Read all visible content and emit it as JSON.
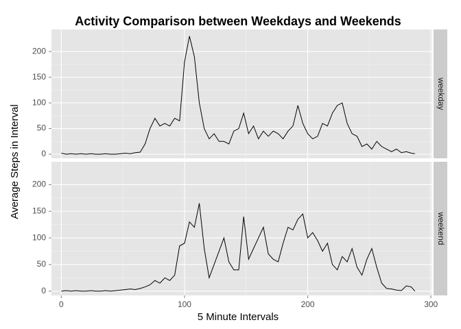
{
  "chart_data": {
    "type": "line",
    "title": "Activity Comparison between Weekdays and Weekends",
    "xlabel": "5 Minute Intervals",
    "ylabel": "Average Steps in Interval",
    "x": [
      0,
      4,
      8,
      12,
      16,
      20,
      24,
      28,
      32,
      36,
      40,
      44,
      48,
      52,
      56,
      60,
      64,
      68,
      72,
      76,
      80,
      84,
      88,
      92,
      96,
      100,
      104,
      108,
      112,
      116,
      120,
      124,
      128,
      132,
      136,
      140,
      144,
      148,
      152,
      156,
      160,
      164,
      168,
      172,
      176,
      180,
      184,
      188,
      192,
      196,
      200,
      204,
      208,
      212,
      216,
      220,
      224,
      228,
      232,
      236,
      240,
      244,
      248,
      252,
      256,
      260,
      264,
      268,
      272,
      276,
      280,
      284,
      287
    ],
    "series": [
      {
        "name": "weekday",
        "color": "#000000",
        "values": [
          2,
          0,
          1,
          0,
          1,
          0,
          1,
          0,
          0,
          1,
          0,
          0,
          1,
          2,
          1,
          3,
          4,
          20,
          50,
          70,
          55,
          60,
          55,
          70,
          65,
          180,
          230,
          190,
          100,
          50,
          30,
          40,
          25,
          25,
          20,
          45,
          50,
          80,
          40,
          55,
          30,
          45,
          35,
          45,
          40,
          30,
          45,
          55,
          95,
          60,
          40,
          30,
          35,
          60,
          55,
          80,
          95,
          100,
          60,
          40,
          35,
          15,
          20,
          10,
          25,
          15,
          10,
          5,
          10,
          3,
          5,
          2,
          1
        ]
      },
      {
        "name": "weekend",
        "color": "#000000",
        "values": [
          0,
          1,
          0,
          1,
          0,
          0,
          1,
          0,
          0,
          1,
          0,
          1,
          2,
          3,
          4,
          3,
          5,
          8,
          12,
          20,
          15,
          25,
          20,
          30,
          85,
          90,
          130,
          120,
          165,
          80,
          25,
          50,
          75,
          100,
          55,
          40,
          40,
          140,
          60,
          80,
          100,
          120,
          70,
          60,
          55,
          90,
          120,
          115,
          135,
          145,
          100,
          110,
          95,
          75,
          90,
          50,
          40,
          65,
          55,
          80,
          45,
          30,
          60,
          80,
          45,
          15,
          5,
          4,
          2,
          1,
          10,
          8,
          0
        ]
      }
    ],
    "xlim": [
      -8,
      301
    ],
    "xticks": [
      0,
      100,
      200,
      300
    ],
    "ylim": [
      -8,
      243
    ],
    "yticks": [
      0,
      50,
      100,
      150,
      200
    ],
    "grid": true
  }
}
